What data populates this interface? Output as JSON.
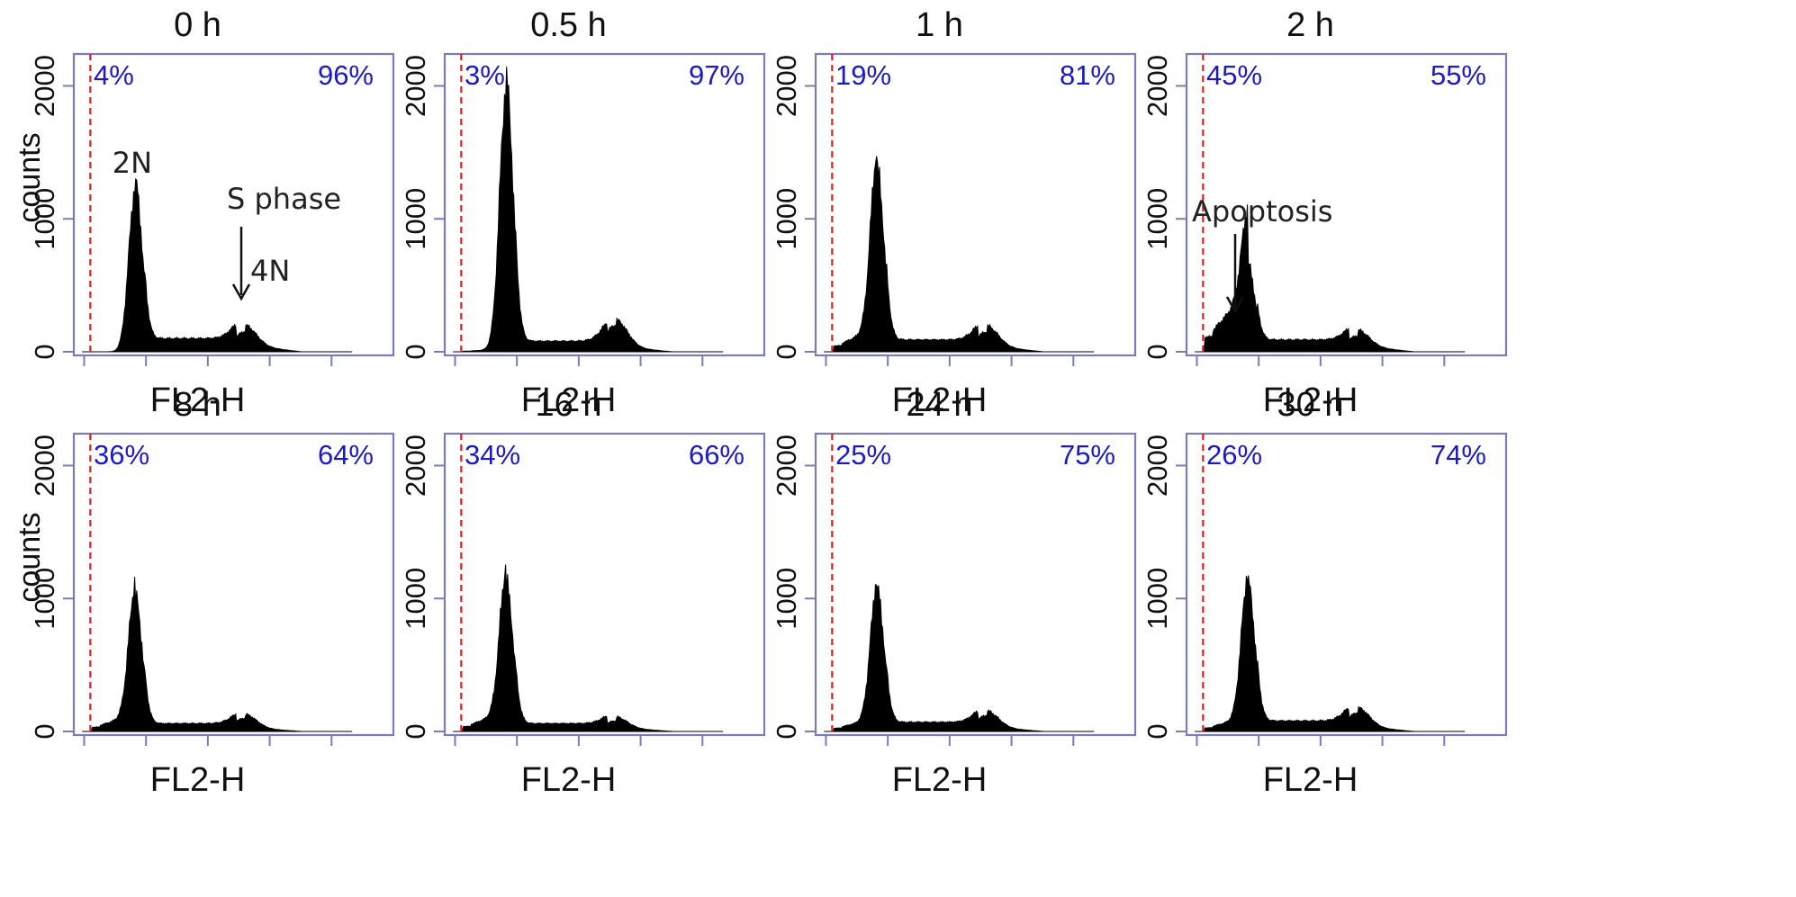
{
  "chart_data": [
    {
      "type": "area",
      "title": "0 h",
      "xlabel": "FL2-H",
      "ylabel": "counts",
      "ylim": [
        0,
        2000
      ],
      "yticks": [
        "0",
        "1000",
        "2000"
      ],
      "gate_labels": [
        "4%",
        "96%"
      ],
      "peaks": {
        "g1_peak": 1250,
        "g2_peak": 150,
        "sub_g1_level": 0,
        "s_level": 100
      },
      "annotations": [
        {
          "text": "2N"
        },
        {
          "text": "S phase",
          "arrow": "down"
        },
        {
          "text": "4N"
        }
      ]
    },
    {
      "type": "area",
      "title": "0.5 h",
      "xlabel": "FL2-H",
      "ylabel": "",
      "ylim": [
        0,
        2000
      ],
      "yticks": [
        "0",
        "1000",
        "2000"
      ],
      "gate_labels": [
        "3%",
        "97%"
      ],
      "peaks": {
        "g1_peak": 2000,
        "g2_peak": 200,
        "sub_g1_level": 20,
        "s_level": 80
      },
      "annotations": []
    },
    {
      "type": "area",
      "title": "1 h",
      "xlabel": "FL2-H",
      "ylabel": "",
      "ylim": [
        0,
        2000
      ],
      "yticks": [
        "0",
        "1000",
        "2000"
      ],
      "gate_labels": [
        "19%",
        "81%"
      ],
      "peaks": {
        "g1_peak": 1350,
        "g2_peak": 150,
        "sub_g1_level": 180,
        "s_level": 90
      },
      "annotations": []
    },
    {
      "type": "area",
      "title": "2 h",
      "xlabel": "FL2-H",
      "ylabel": "",
      "ylim": [
        0,
        2000
      ],
      "yticks": [
        "0",
        "1000",
        "2000"
      ],
      "gate_labels": [
        "45%",
        "55%"
      ],
      "peaks": {
        "g1_peak": 650,
        "g2_peak": 120,
        "sub_g1_level": 450,
        "s_level": 90
      },
      "annotations": [
        {
          "text": "Apoptosis",
          "arrow": "down"
        }
      ]
    },
    {
      "type": "area",
      "title": "8 h",
      "xlabel": "FL2-H",
      "ylabel": "counts",
      "ylim": [
        0,
        2000
      ],
      "yticks": [
        "0",
        "1000",
        "2000"
      ],
      "gate_labels": [
        "36%",
        "64%"
      ],
      "peaks": {
        "g1_peak": 1000,
        "g2_peak": 100,
        "sub_g1_level": 130,
        "s_level": 60
      },
      "annotations": []
    },
    {
      "type": "area",
      "title": "16 h",
      "xlabel": "FL2-H",
      "ylabel": "",
      "ylim": [
        0,
        2000
      ],
      "yticks": [
        "0",
        "1000",
        "2000"
      ],
      "gate_labels": [
        "34%",
        "66%"
      ],
      "peaks": {
        "g1_peak": 1100,
        "g2_peak": 80,
        "sub_g1_level": 150,
        "s_level": 60
      },
      "annotations": []
    },
    {
      "type": "area",
      "title": "24 h",
      "xlabel": "FL2-H",
      "ylabel": "",
      "ylim": [
        0,
        2000
      ],
      "yticks": [
        "0",
        "1000",
        "2000"
      ],
      "gate_labels": [
        "25%",
        "75%"
      ],
      "peaks": {
        "g1_peak": 1050,
        "g2_peak": 120,
        "sub_g1_level": 100,
        "s_level": 70
      },
      "annotations": []
    },
    {
      "type": "area",
      "title": "30 h",
      "xlabel": "FL2-H",
      "ylabel": "",
      "ylim": [
        0,
        2000
      ],
      "yticks": [
        "0",
        "1000",
        "2000"
      ],
      "gate_labels": [
        "26%",
        "74%"
      ],
      "peaks": {
        "g1_peak": 1100,
        "g2_peak": 140,
        "sub_g1_level": 110,
        "s_level": 80
      },
      "annotations": []
    }
  ],
  "colors": {
    "axis": "#7b7bb8",
    "gate": "#e02020",
    "pct": "#1a1acc",
    "hist": "#000000",
    "text": "#111111"
  }
}
